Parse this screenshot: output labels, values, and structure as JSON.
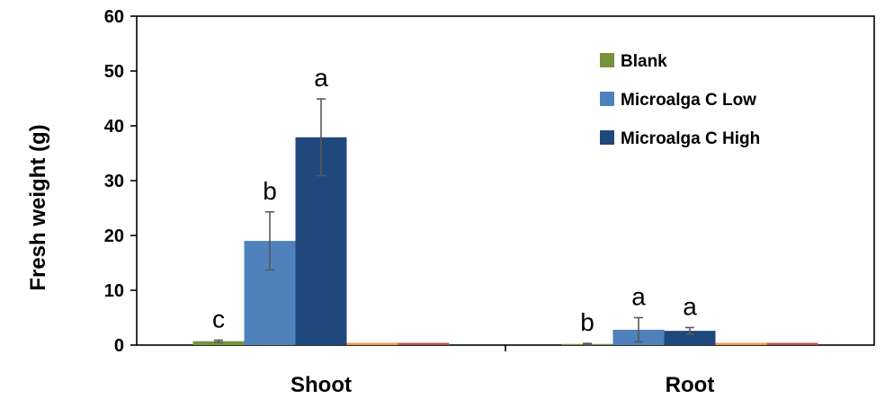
{
  "chart_data": {
    "type": "bar",
    "ylabel": "Fresh weight (g)",
    "ylim": [
      0,
      60
    ],
    "yticks": [
      0,
      10,
      20,
      30,
      40,
      50,
      60
    ],
    "categories": [
      "Shoot",
      "Root"
    ],
    "grid": false,
    "legend_position": "top-right",
    "series": [
      {
        "name": "Blank",
        "color": "#77933c",
        "values": [
          0.7,
          0.2
        ],
        "errors": [
          0.2,
          0.1
        ],
        "sig": [
          "c",
          "b"
        ]
      },
      {
        "name": "Microalga C Low",
        "color": "#4f81bd",
        "values": [
          19.0,
          2.8
        ],
        "errors": [
          5.3,
          2.2
        ],
        "sig": [
          "b",
          "a"
        ]
      },
      {
        "name": "Microalga C High",
        "color": "#1f497d",
        "values": [
          37.9,
          2.6
        ],
        "errors": [
          7.0,
          0.6
        ],
        "sig": [
          "a",
          "a"
        ]
      },
      {
        "name": "",
        "color": "#f79646",
        "values": [
          0.4,
          0.4
        ],
        "errors": [
          0,
          0
        ],
        "sig": [
          "",
          ""
        ]
      },
      {
        "name": "",
        "color": "#c0504d",
        "values": [
          0.4,
          0.4
        ],
        "errors": [
          0,
          0
        ],
        "sig": [
          "",
          ""
        ]
      }
    ]
  }
}
